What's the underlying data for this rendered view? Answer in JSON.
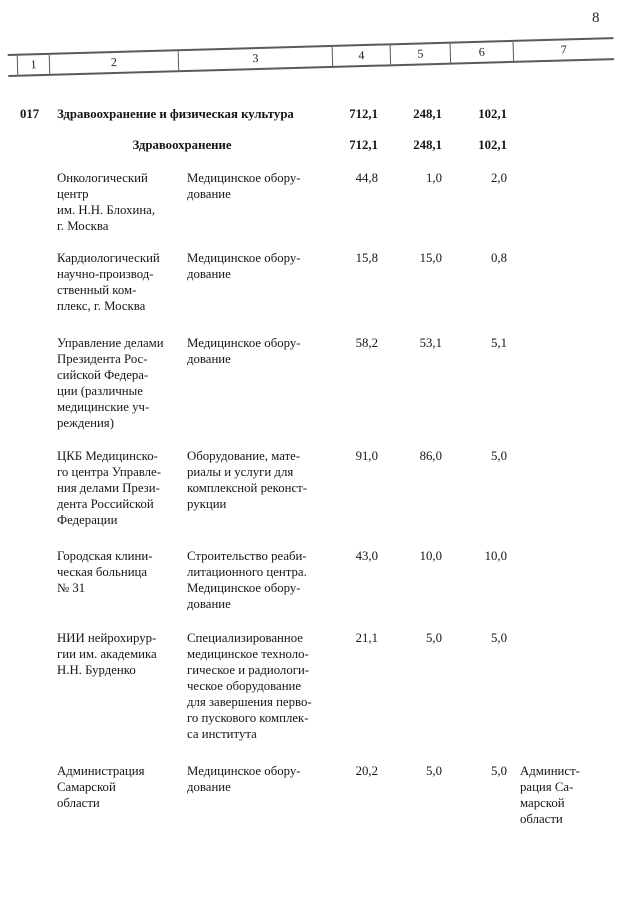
{
  "page": {
    "number": "8"
  },
  "table": {
    "header_cols": [
      "1",
      "2",
      "3",
      "4",
      "5",
      "6",
      "7"
    ],
    "rows": [
      {
        "code": "017",
        "title": "Здравоохранение и физическая культура",
        "v4": "712,1",
        "v5": "248,1",
        "v6": "102,1"
      },
      {
        "subtitle": "Здравоохранение",
        "v4": "712,1",
        "v5": "248,1",
        "v6": "102,1"
      },
      {
        "name": "Онкологический\nцентр\nим. Н.Н. Блохина,\nг. Москва",
        "desc": "Медицинское обору-\nдование",
        "v4": "44,8",
        "v5": "1,0",
        "v6": "2,0"
      },
      {
        "name": "Кардиологический\nнаучно-производ-\nственный ком-\nплекс, г. Москва",
        "desc": "Медицинское обору-\nдование",
        "v4": "15,8",
        "v5": "15,0",
        "v6": "0,8"
      },
      {
        "name": "Управление делами\nПрезидента Рос-\nсийской Федера-\nции (различные\nмедицинские уч-\nреждения)",
        "desc": "Медицинское обору-\nдование",
        "v4": "58,2",
        "v5": "53,1",
        "v6": "5,1"
      },
      {
        "name": "ЦКБ Медицинско-\nго центра Управле-\nния делами Прези-\nдента Российской\nФедерации",
        "desc": "Оборудование, мате-\nриалы и услуги для\nкомплексной реконст-\nрукции",
        "v4": "91,0",
        "v5": "86,0",
        "v6": "5,0"
      },
      {
        "name": "Городская клини-\nческая больница\n№ 31",
        "desc": "Строительство реаби-\nлитационного центра.\nМедицинское обору-\nдование",
        "v4": "43,0",
        "v5": "10,0",
        "v6": "10,0"
      },
      {
        "name": "НИИ нейрохирур-\nгии им. академика\nН.Н. Бурденко",
        "desc": "Специализированное\nмедицинское техноло-\nгическое и радиологи-\nческое оборудование\nдля завершения перво-\nго пускового комплек-\nса института",
        "v4": "21,1",
        "v5": "5,0",
        "v6": "5,0"
      },
      {
        "name": "Администрация\nСамарской\nобласти",
        "desc": "Медицинское обору-\nдование",
        "v4": "20,2",
        "v5": "5,0",
        "v6": "5,0",
        "v7": "Админист-\nрация Са-\nмарской\nобласти"
      }
    ]
  }
}
